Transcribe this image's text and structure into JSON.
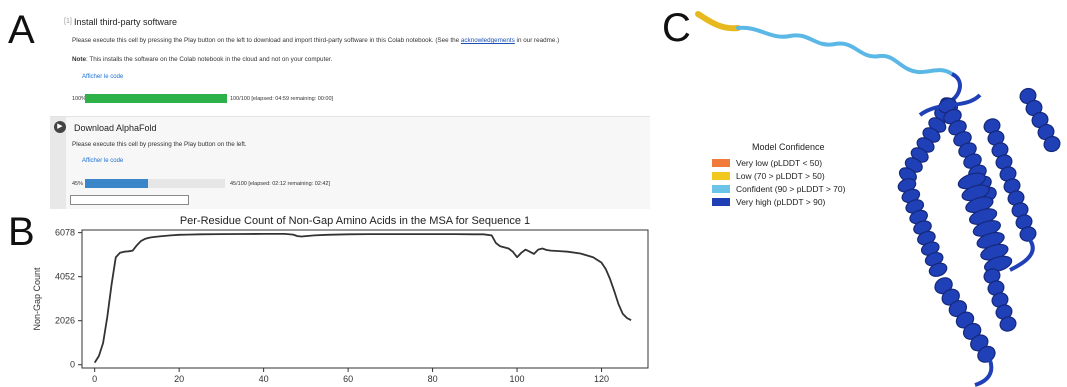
{
  "panels": {
    "a": "A",
    "b": "B",
    "c": "C"
  },
  "colab": {
    "cell1": {
      "gutter_mark": "[1]",
      "title": "Install third-party software",
      "description_before_link": "Please execute this cell by pressing the Play button on the left to download and import third-party software in this Colab notebook. (See the ",
      "link_text": "acknowledgements",
      "description_after_link": " in our readme.)",
      "note_label": "Note",
      "note_text": ": This installs the software on the Colab notebook in the cloud and not on your computer.",
      "show_code": "Afficher le code",
      "progress": {
        "percent_label": "100%",
        "fraction": 1.0,
        "status": "100/100 [elapsed: 04:59 remaining: 00:00]",
        "color": "#2db24a"
      }
    },
    "cell2": {
      "play_icon": "play-icon",
      "title": "Download AlphaFold",
      "description": "Please execute this cell by pressing the Play button on the left.",
      "show_code": "Afficher le code",
      "progress": {
        "percent_label": "45%",
        "fraction": 0.45,
        "status": "45/100 [elapsed: 02:12 remaining: 02:42]",
        "color": "#3a86c9"
      }
    }
  },
  "chart_data": {
    "type": "line",
    "title": "Per-Residue Count of Non-Gap Amino Acids in the MSA for Sequence 1",
    "xlabel": "",
    "ylabel": "Non-Gap Count",
    "xlim": [
      -3,
      131
    ],
    "ylim": [
      -150,
      6200
    ],
    "xticks": [
      "0",
      "20",
      "40",
      "60",
      "80",
      "100",
      "120"
    ],
    "yticks": [
      "0",
      "2026",
      "4052",
      "6078"
    ],
    "grid": false,
    "series": [
      {
        "color": "#333333",
        "x": [
          0,
          1,
          2,
          3,
          4,
          5,
          6,
          7,
          8,
          9,
          10,
          11,
          12,
          13,
          14,
          16,
          18,
          20,
          22,
          25,
          30,
          35,
          40,
          45,
          47,
          48,
          49,
          50,
          52,
          55,
          60,
          65,
          70,
          75,
          80,
          85,
          90,
          92,
          94,
          95,
          96,
          97,
          98,
          99,
          100,
          101,
          102,
          103,
          104,
          105,
          106,
          107,
          108,
          110,
          112,
          115,
          118,
          120,
          121,
          122,
          123,
          124,
          125,
          126,
          127
        ],
        "y": [
          100,
          400,
          1000,
          2200,
          3700,
          4950,
          5150,
          5200,
          5220,
          5250,
          5500,
          5700,
          5800,
          5850,
          5880,
          5920,
          5950,
          5980,
          5990,
          6000,
          6010,
          6015,
          6020,
          6020,
          5990,
          5920,
          5900,
          5920,
          5950,
          5980,
          6000,
          6010,
          6010,
          6010,
          6010,
          6010,
          6000,
          6000,
          5950,
          5600,
          5450,
          5400,
          5350,
          5200,
          4950,
          5150,
          5300,
          5200,
          5100,
          5300,
          5350,
          5280,
          5250,
          5230,
          5200,
          5120,
          4950,
          4700,
          4400,
          3950,
          3400,
          2800,
          2350,
          2150,
          2050
        ]
      }
    ]
  },
  "legend": {
    "title": "Model Confidence",
    "items": [
      {
        "label": "Very low (pLDDT < 50)",
        "color": "#f07a3a"
      },
      {
        "label": "Low (70 > pLDDT > 50)",
        "color": "#f2c81e"
      },
      {
        "label": "Confident (90 > pLDDT > 70)",
        "color": "#6cc3e8"
      },
      {
        "label": "Very high (pLDDT > 90)",
        "color": "#1f3fb5"
      }
    ]
  },
  "structure": {
    "colors": {
      "low": "#e8b91f",
      "confident": "#5bb8e6",
      "very_high": "#2040b8",
      "dark": "#15287a"
    }
  }
}
